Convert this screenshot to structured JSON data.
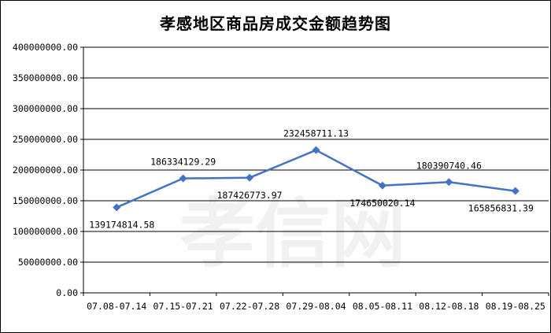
{
  "chart_data": {
    "type": "line",
    "title": "孝感地区商品房成交金额趋势图",
    "xlabel": "",
    "ylabel": "",
    "categories": [
      "07.08-07.14",
      "07.15-07.21",
      "07.22-07.28",
      "07.29-08.04",
      "08.05-08.11",
      "08.12-08.18",
      "08.19-08.25"
    ],
    "series": [
      {
        "values": [
          139174814.58,
          186334129.29,
          187426773.97,
          232458711.13,
          174650020.14,
          180390740.46,
          165856831.39
        ],
        "labels": [
          "139174814.58",
          "186334129.29",
          "187426773.97",
          "232458711.13",
          "174650020.14",
          "180390740.46",
          "165856831.39"
        ],
        "label_position": [
          "below",
          "above",
          "below",
          "above",
          "below",
          "above",
          "below"
        ],
        "color": "#4472C4",
        "marker": "diamond"
      }
    ],
    "ylim": [
      0,
      400000000
    ],
    "yticks": [
      0,
      50000000,
      100000000,
      150000000,
      200000000,
      250000000,
      300000000,
      350000000,
      400000000
    ],
    "ytick_labels": [
      "0.00",
      "50000000.00",
      "100000000.00",
      "150000000.00",
      "200000000.00",
      "250000000.00",
      "300000000.00",
      "350000000.00",
      "400000000.00"
    ],
    "grid": true,
    "legend": "none"
  },
  "watermark": "孝信网"
}
